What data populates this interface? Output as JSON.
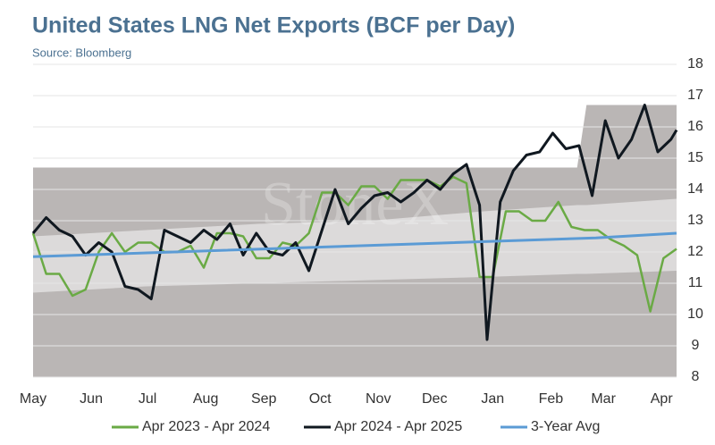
{
  "chart_data": {
    "type": "line",
    "title": "United States LNG Net Exports (BCF per Day)",
    "subtitle": "Source: Bloomberg",
    "watermark": "StoneX",
    "xlim": [
      0,
      343
    ],
    "xticks": [
      {
        "value": 0,
        "label": "May"
      },
      {
        "value": 31,
        "label": "Jun"
      },
      {
        "value": 61,
        "label": "Jul"
      },
      {
        "value": 92,
        "label": "Aug"
      },
      {
        "value": 123,
        "label": "Sep"
      },
      {
        "value": 153,
        "label": "Oct"
      },
      {
        "value": 184,
        "label": "Nov"
      },
      {
        "value": 214,
        "label": "Dec"
      },
      {
        "value": 245,
        "label": "Jan"
      },
      {
        "value": 276,
        "label": "Feb"
      },
      {
        "value": 304,
        "label": "Mar"
      },
      {
        "value": 335,
        "label": "Apr"
      }
    ],
    "ylim": [
      8,
      18
    ],
    "yticks": [
      8,
      9,
      10,
      11,
      12,
      13,
      14,
      15,
      16,
      17,
      18
    ],
    "grid": true,
    "bands": [
      {
        "color": "#bab6b5",
        "x": [
          0,
          60,
          120,
          180,
          240,
          290,
          295,
          343
        ],
        "lower": [
          8,
          8,
          8,
          8,
          8,
          8,
          8,
          8
        ],
        "upper": [
          14.7,
          14.7,
          14.7,
          14.7,
          14.7,
          14.7,
          16.7,
          16.7
        ]
      },
      {
        "color": "#dcdada",
        "x": [
          0,
          60,
          120,
          180,
          240,
          290,
          295,
          343
        ],
        "lower": [
          10.7,
          10.9,
          11.0,
          11.1,
          11.2,
          11.3,
          11.3,
          11.4
        ],
        "upper": [
          12.5,
          12.7,
          12.9,
          13.0,
          13.3,
          13.5,
          13.5,
          13.7
        ]
      }
    ],
    "series": [
      {
        "name": "Apr 2023 - Apr 2024",
        "color": "#6aaa45",
        "width": 2.5,
        "x": [
          0,
          7,
          14,
          21,
          28,
          35,
          42,
          49,
          56,
          63,
          70,
          77,
          84,
          91,
          98,
          105,
          112,
          119,
          126,
          133,
          140,
          147,
          154,
          161,
          168,
          175,
          182,
          189,
          196,
          203,
          210,
          217,
          224,
          231,
          238,
          245,
          252,
          259,
          266,
          273,
          280,
          287,
          294,
          301,
          308,
          315,
          322,
          329,
          336,
          343
        ],
        "values": [
          12.6,
          11.3,
          11.3,
          10.6,
          10.8,
          12.0,
          12.6,
          12.0,
          12.3,
          12.3,
          12.0,
          12.0,
          12.2,
          11.5,
          12.6,
          12.6,
          12.5,
          11.8,
          11.8,
          12.3,
          12.2,
          12.6,
          13.9,
          13.9,
          13.5,
          14.1,
          14.1,
          13.7,
          14.3,
          14.3,
          14.3,
          14.1,
          14.4,
          14.2,
          11.2,
          11.2,
          13.3,
          13.3,
          13.0,
          13.0,
          13.6,
          12.8,
          12.7,
          12.7,
          12.4,
          12.2,
          11.9,
          10.1,
          11.8,
          12.1
        ]
      },
      {
        "name": "Apr 2024 - Apr 2025",
        "color": "#101820",
        "width": 3,
        "x": [
          0,
          7,
          14,
          21,
          28,
          35,
          42,
          49,
          56,
          63,
          70,
          77,
          84,
          91,
          98,
          105,
          112,
          119,
          126,
          133,
          140,
          147,
          154,
          161,
          168,
          175,
          182,
          189,
          196,
          203,
          210,
          217,
          224,
          231,
          238,
          242,
          249,
          256,
          263,
          270,
          277,
          284,
          291,
          298,
          305,
          312,
          319,
          326,
          333,
          340,
          343
        ],
        "values": [
          12.6,
          13.1,
          12.7,
          12.5,
          11.9,
          12.3,
          12.0,
          10.9,
          10.8,
          10.5,
          12.7,
          12.5,
          12.3,
          12.7,
          12.4,
          12.9,
          11.9,
          12.6,
          12.0,
          11.9,
          12.3,
          11.4,
          12.7,
          14.0,
          12.9,
          13.4,
          13.8,
          13.9,
          13.6,
          13.9,
          14.3,
          14.0,
          14.5,
          14.8,
          13.5,
          9.2,
          13.6,
          14.6,
          15.1,
          15.2,
          15.8,
          15.3,
          15.4,
          13.8,
          16.2,
          15.0,
          15.6,
          16.7,
          15.2,
          15.6,
          15.9
        ]
      },
      {
        "name": "3-Year Avg",
        "color": "#5b9bd5",
        "width": 3,
        "x": [
          0,
          100,
          200,
          300,
          343
        ],
        "values": [
          11.85,
          12.05,
          12.25,
          12.45,
          12.6
        ]
      }
    ]
  }
}
